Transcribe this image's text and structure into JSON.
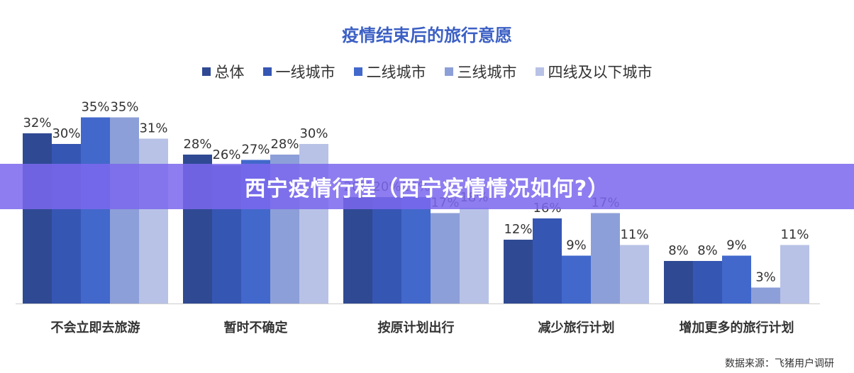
{
  "banner": {
    "text": "西宁疫情行程（西宁疫情情况如何?）"
  },
  "source": "数据来源：飞猪用户调研",
  "chart_data": {
    "type": "bar",
    "title": "疫情结束后的旅行意愿",
    "categories": [
      "不会立即去旅游",
      "暂时不确定",
      "按原计划出行",
      "减少旅行计划",
      "增加更多的旅行计划"
    ],
    "series": [
      {
        "name": "总体",
        "color": "#2f4a93",
        "values": [
          32,
          28,
          20,
          12,
          8
        ]
      },
      {
        "name": "一线城市",
        "color": "#3656b3",
        "values": [
          30,
          26,
          20,
          16,
          8
        ]
      },
      {
        "name": "二线城市",
        "color": "#4268cc",
        "values": [
          35,
          27,
          20,
          9,
          9
        ]
      },
      {
        "name": "三线城市",
        "color": "#8d9fd8",
        "values": [
          35,
          28,
          17,
          17,
          3
        ]
      },
      {
        "name": "四线及以下城市",
        "color": "#b8c2e6",
        "values": [
          31,
          30,
          18,
          11,
          11
        ]
      }
    ],
    "value_suffix": "%",
    "ylim": [
      0,
      40
    ],
    "grid": false,
    "legend_position": "top"
  }
}
